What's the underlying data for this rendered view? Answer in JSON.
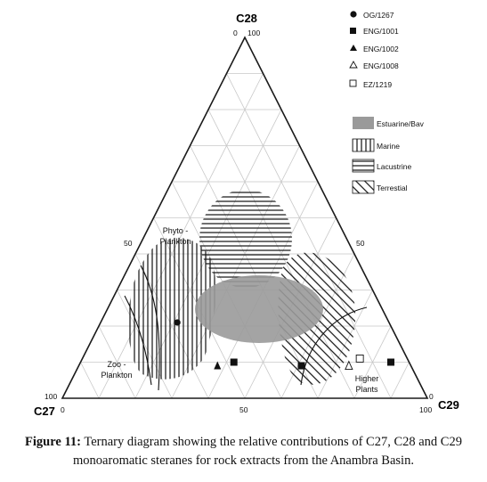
{
  "chart_data": {
    "type": "ternary",
    "axes": {
      "top": "C28",
      "left": "C27",
      "right": "C29"
    },
    "tick_labels": {
      "top_apex": "0",
      "top_apex_100": "100",
      "left_apex_100": "100",
      "right_apex_0": "0",
      "base_left": "0",
      "base_mid": "50",
      "base_right": "100",
      "left_mid": "50",
      "right_mid": "50"
    },
    "grid": true,
    "grid_step": 10,
    "legend_placement": "top-right",
    "series": [
      {
        "name": "OG/1267",
        "marker": "filled-circle",
        "points": [
          {
            "C27": 58,
            "C28": 21,
            "C29": 21
          }
        ]
      },
      {
        "name": "ENG/1001",
        "marker": "filled-square",
        "points": [
          {
            "C27": 48,
            "C28": 10,
            "C29": 42
          },
          {
            "C27": 30,
            "C28": 9,
            "C29": 61
          },
          {
            "C27": 5,
            "C28": 10,
            "C29": 85
          }
        ]
      },
      {
        "name": "ENG/1002",
        "marker": "filled-triangle",
        "points": [
          {
            "C27": 53,
            "C28": 9,
            "C29": 38
          }
        ]
      },
      {
        "name": "ENG/1008",
        "marker": "open-triangle",
        "points": [
          {
            "C27": 17,
            "C28": 9,
            "C29": 74
          }
        ]
      },
      {
        "name": "EZ/1219",
        "marker": "open-square",
        "points": [
          {
            "C27": 13,
            "C28": 11,
            "C29": 76
          }
        ]
      }
    ],
    "regions": [
      {
        "name": "Estuarine/Bay",
        "fill": "gray"
      },
      {
        "name": "Marine",
        "fill": "vertical-hatch"
      },
      {
        "name": "Lacustrine",
        "fill": "horizontal-hatch"
      },
      {
        "name": "Terrestial",
        "fill": "diagonal-hatch"
      }
    ],
    "annotations": [
      "Phyto -",
      "Plankton",
      "Zoo -",
      "Plankton",
      "Higher",
      "Plants"
    ]
  },
  "legend": {
    "points": [
      "OG/1267",
      "ENG/1001",
      "ENG/1002",
      "ENG/1008",
      "EZ/1219"
    ],
    "regions": [
      "Estuarine/Bav",
      "Marine",
      "Lacustrine",
      "Terrestial"
    ]
  },
  "caption": {
    "label": "Figure 11:",
    "text": " Ternary diagram showing the relative contributions of C27, C28 and C29 monoaromatic steranes for rock extracts from the Anambra Basin."
  },
  "colors": {
    "estuarine": "#9a9a9a",
    "grid": "#c8c8c8",
    "frame": "#1a1a1a"
  }
}
